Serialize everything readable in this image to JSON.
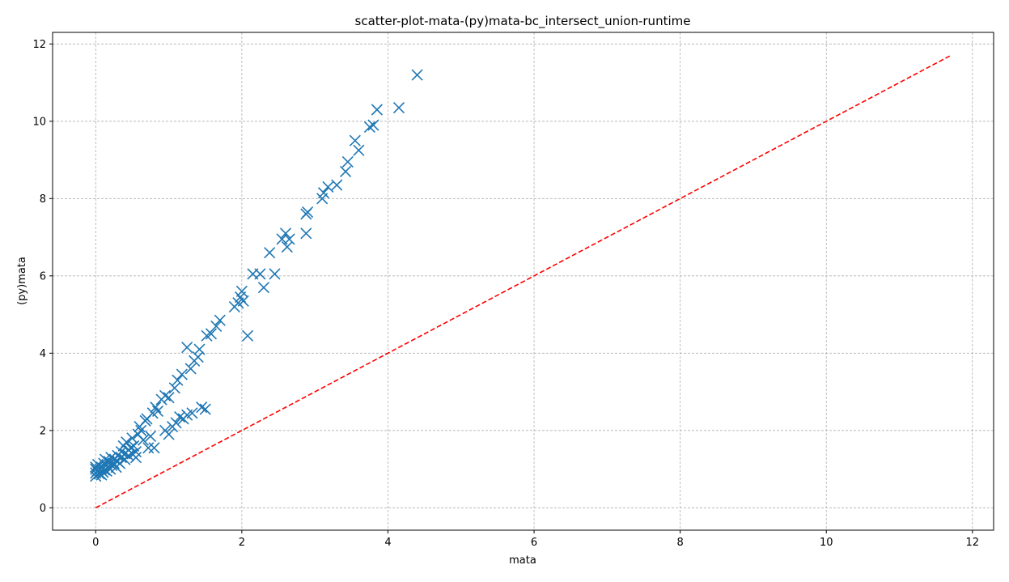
{
  "chart_data": {
    "type": "scatter",
    "title": "scatter-plot-mata-(py)mata-bc_intersect_union-runtime",
    "xlabel": "mata",
    "ylabel": "(py)mata",
    "xlim": [
      -0.59,
      12.29
    ],
    "ylim": [
      -0.58,
      12.3
    ],
    "xticks": [
      0,
      2,
      4,
      6,
      8,
      10,
      12
    ],
    "yticks": [
      0,
      2,
      4,
      6,
      8,
      10,
      12
    ],
    "grid": true,
    "marker": "x",
    "colors": {
      "points": "#1f77b4",
      "reference": "#ff0000",
      "grid": "#b0b0b0"
    },
    "reference_line": {
      "style": "dashed",
      "from": [
        0,
        0
      ],
      "to": [
        11.7,
        11.7
      ]
    },
    "series": [
      {
        "points": [
          [
            0.0,
            0.82
          ],
          [
            0.0,
            0.9
          ],
          [
            0.0,
            1.0
          ],
          [
            0.0,
            1.05
          ],
          [
            0.02,
            0.95
          ],
          [
            0.03,
            1.12
          ],
          [
            0.05,
            0.88
          ],
          [
            0.06,
            1.0
          ],
          [
            0.08,
            0.85
          ],
          [
            0.08,
            1.05
          ],
          [
            0.1,
            0.92
          ],
          [
            0.11,
            1.15
          ],
          [
            0.12,
            0.98
          ],
          [
            0.13,
            1.25
          ],
          [
            0.15,
            0.95
          ],
          [
            0.15,
            1.1
          ],
          [
            0.17,
            1.05
          ],
          [
            0.18,
            1.2
          ],
          [
            0.2,
            1.0
          ],
          [
            0.21,
            1.3
          ],
          [
            0.22,
            1.1
          ],
          [
            0.25,
            1.15
          ],
          [
            0.26,
            1.25
          ],
          [
            0.28,
            1.05
          ],
          [
            0.3,
            1.35
          ],
          [
            0.3,
            1.2
          ],
          [
            0.33,
            1.15
          ],
          [
            0.35,
            1.3
          ],
          [
            0.35,
            1.45
          ],
          [
            0.38,
            1.6
          ],
          [
            0.4,
            1.4
          ],
          [
            0.4,
            1.25
          ],
          [
            0.42,
            1.7
          ],
          [
            0.45,
            1.5
          ],
          [
            0.45,
            1.35
          ],
          [
            0.48,
            1.55
          ],
          [
            0.5,
            1.8
          ],
          [
            0.5,
            1.4
          ],
          [
            0.52,
            1.6
          ],
          [
            0.55,
            1.3
          ],
          [
            0.55,
            1.45
          ],
          [
            0.58,
            1.9
          ],
          [
            0.6,
            2.1
          ],
          [
            0.62,
            2.0
          ],
          [
            0.65,
            1.75
          ],
          [
            0.68,
            2.25
          ],
          [
            0.7,
            2.3
          ],
          [
            0.72,
            1.55
          ],
          [
            0.75,
            1.85
          ],
          [
            0.78,
            2.45
          ],
          [
            0.8,
            1.55
          ],
          [
            0.82,
            2.6
          ],
          [
            0.85,
            2.5
          ],
          [
            0.9,
            2.8
          ],
          [
            0.95,
            2.0
          ],
          [
            0.95,
            2.9
          ],
          [
            1.0,
            1.9
          ],
          [
            1.0,
            2.85
          ],
          [
            1.05,
            2.1
          ],
          [
            1.08,
            3.1
          ],
          [
            1.1,
            2.2
          ],
          [
            1.12,
            3.3
          ],
          [
            1.15,
            2.35
          ],
          [
            1.18,
            3.45
          ],
          [
            1.2,
            2.3
          ],
          [
            1.25,
            2.4
          ],
          [
            1.25,
            4.15
          ],
          [
            1.3,
            3.6
          ],
          [
            1.32,
            2.45
          ],
          [
            1.35,
            3.8
          ],
          [
            1.4,
            3.9
          ],
          [
            1.42,
            4.1
          ],
          [
            1.45,
            2.6
          ],
          [
            1.5,
            2.55
          ],
          [
            1.52,
            4.45
          ],
          [
            1.58,
            4.5
          ],
          [
            1.65,
            4.7
          ],
          [
            1.7,
            4.85
          ],
          [
            1.9,
            5.2
          ],
          [
            1.95,
            5.3
          ],
          [
            1.98,
            5.45
          ],
          [
            2.0,
            5.6
          ],
          [
            2.02,
            5.35
          ],
          [
            2.08,
            4.45
          ],
          [
            2.15,
            6.05
          ],
          [
            2.25,
            6.05
          ],
          [
            2.3,
            5.7
          ],
          [
            2.38,
            6.6
          ],
          [
            2.45,
            6.05
          ],
          [
            2.55,
            6.95
          ],
          [
            2.6,
            7.1
          ],
          [
            2.62,
            6.75
          ],
          [
            2.65,
            6.95
          ],
          [
            2.88,
            7.1
          ],
          [
            2.88,
            7.6
          ],
          [
            2.9,
            7.65
          ],
          [
            3.1,
            8.0
          ],
          [
            3.12,
            8.15
          ],
          [
            3.18,
            8.3
          ],
          [
            3.3,
            8.35
          ],
          [
            3.42,
            8.7
          ],
          [
            3.45,
            8.95
          ],
          [
            3.55,
            9.5
          ],
          [
            3.6,
            9.25
          ],
          [
            3.75,
            9.85
          ],
          [
            3.8,
            9.9
          ],
          [
            3.85,
            10.3
          ],
          [
            4.15,
            10.35
          ],
          [
            4.4,
            11.2
          ]
        ]
      }
    ]
  }
}
